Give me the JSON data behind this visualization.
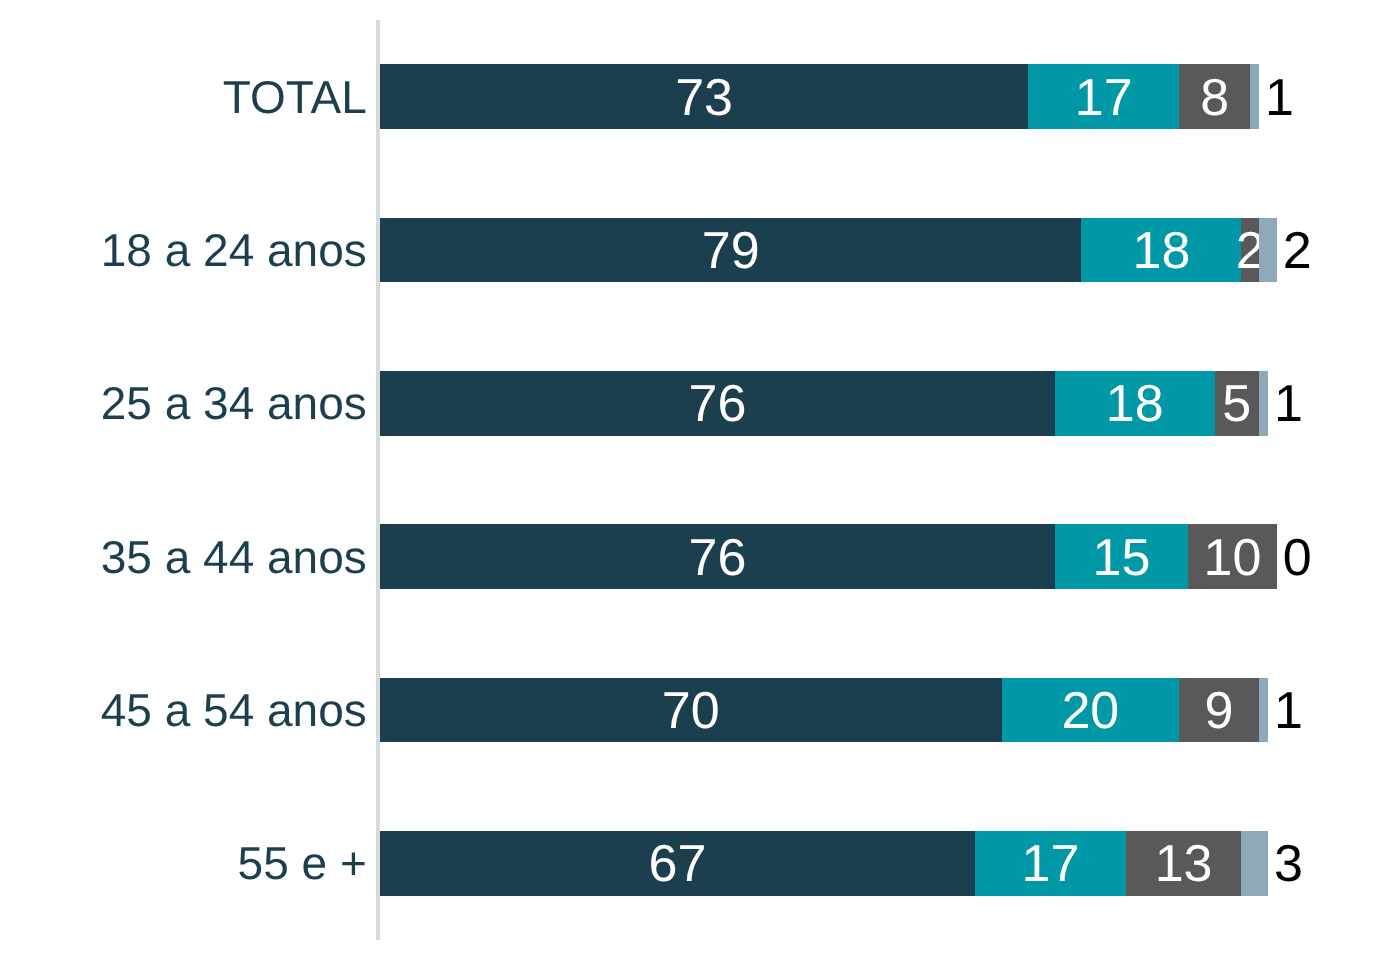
{
  "chart_data": {
    "type": "bar",
    "orientation": "horizontal",
    "stacked": true,
    "data_labels": true,
    "tick_labels": "y",
    "categories": [
      "TOTAL",
      "18 a 24 anos",
      "25 a 34 anos",
      "35 a 44 anos",
      "45 a 54 anos",
      "55 e +"
    ],
    "series": [
      {
        "color": "#1b3f4e",
        "values": [
          73,
          79,
          76,
          76,
          70,
          67
        ]
      },
      {
        "color": "#0097a7",
        "values": [
          17,
          18,
          18,
          15,
          20,
          17
        ]
      },
      {
        "color": "#595959",
        "values": [
          8,
          2,
          5,
          10,
          9,
          13
        ]
      },
      {
        "color": "#8ea9b8",
        "values": [
          1,
          2,
          1,
          0,
          1,
          3
        ]
      }
    ]
  }
}
